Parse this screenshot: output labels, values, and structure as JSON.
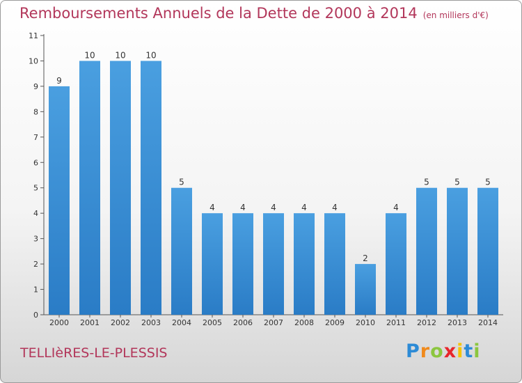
{
  "header": {
    "title": "Remboursements Annuels de la Dette de 2000 à 2014",
    "unit": "(en milliers d'€)"
  },
  "footer": {
    "commune": "TELLIèRES-LE-PLESSIS",
    "logo": {
      "letters": [
        "P",
        "r",
        "o",
        "x",
        "i",
        "t",
        "i"
      ],
      "colors": [
        "#2d8bd6",
        "#f08a1c",
        "#8cc63f",
        "#e8262b",
        "#f5c400",
        "#2d8bd6",
        "#8cc63f"
      ]
    }
  },
  "chart_data": {
    "type": "bar",
    "categories": [
      "2000",
      "2001",
      "2002",
      "2003",
      "2004",
      "2005",
      "2006",
      "2007",
      "2008",
      "2009",
      "2010",
      "2011",
      "2012",
      "2013",
      "2014"
    ],
    "values": [
      9,
      10,
      10,
      10,
      5,
      4,
      4,
      4,
      4,
      4,
      2,
      4,
      5,
      5,
      5
    ],
    "data_labels": [
      "9",
      "10",
      "10",
      "10",
      "5",
      "4",
      "4",
      "4",
      "4",
      "4",
      "2",
      "4",
      "5",
      "5",
      "5"
    ],
    "yticks": [
      0,
      1,
      2,
      3,
      4,
      5,
      6,
      7,
      8,
      9,
      10,
      11
    ],
    "ylim": [
      0,
      11
    ],
    "grid": false,
    "bar_color": "#4a9fe0",
    "bar_color_dark": "#2a7cc6"
  }
}
